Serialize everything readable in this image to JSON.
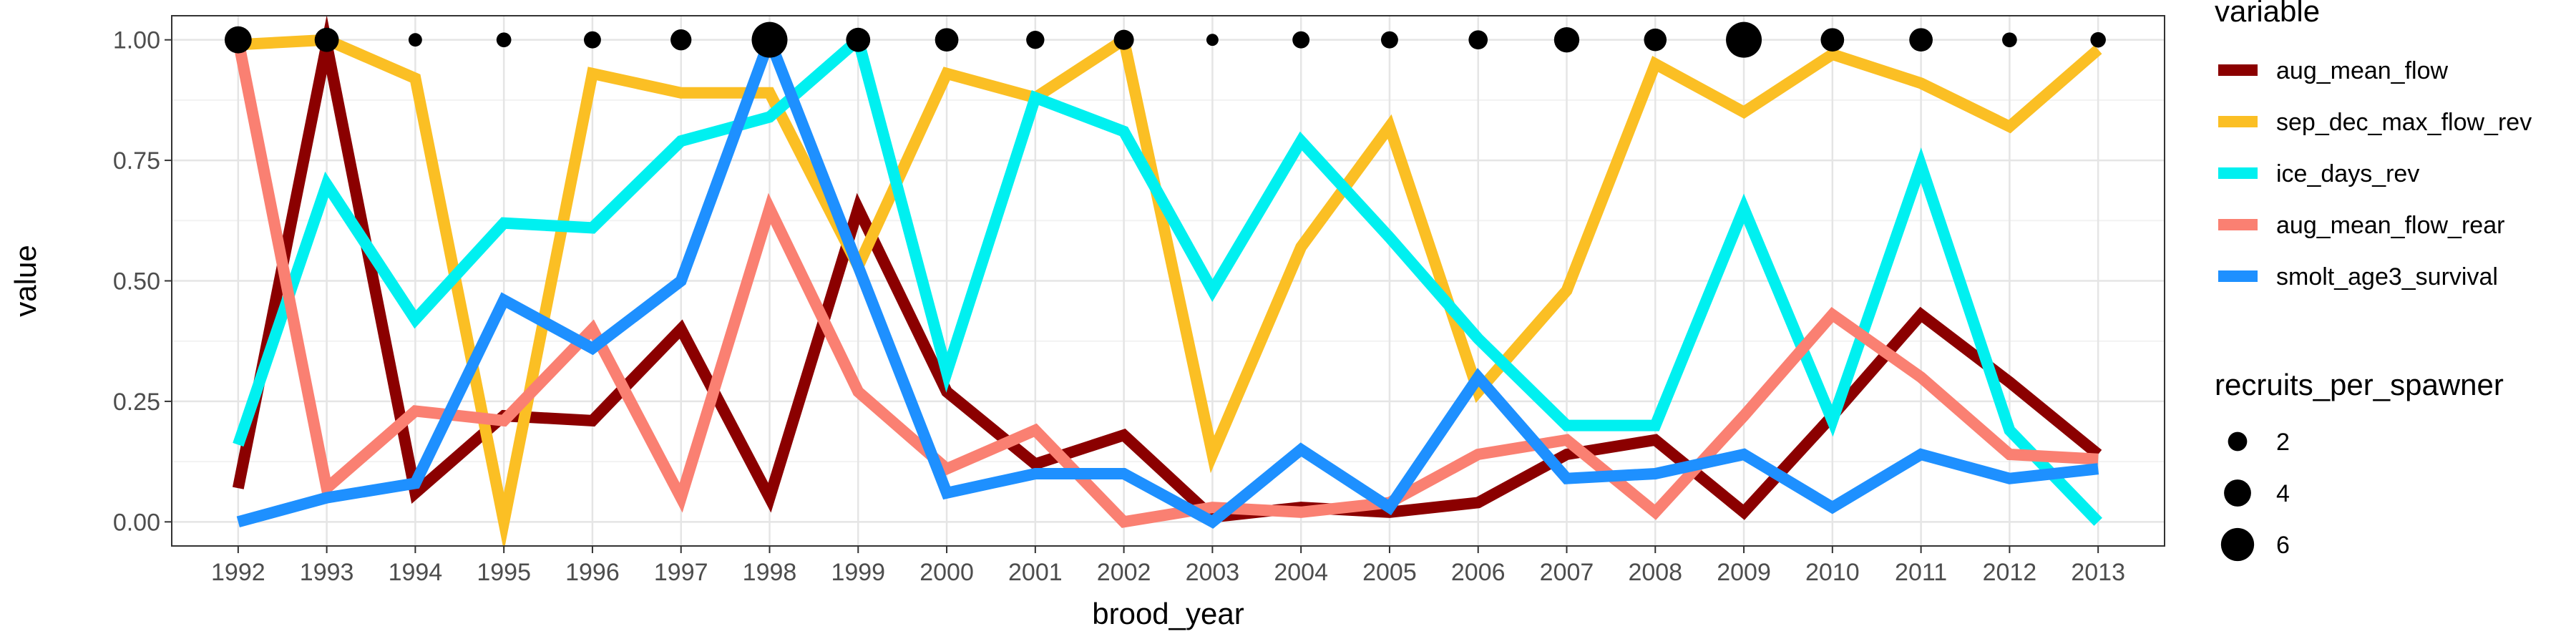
{
  "chart_data": {
    "type": "line",
    "xlabel": "brood_year",
    "ylabel": "value",
    "x": [
      1992,
      1993,
      1994,
      1995,
      1996,
      1997,
      1998,
      1999,
      2000,
      2001,
      2002,
      2003,
      2004,
      2005,
      2006,
      2007,
      2008,
      2009,
      2010,
      2011,
      2012,
      2013
    ],
    "xlim": [
      1991.25,
      2013.75
    ],
    "ylim": [
      -0.05,
      1.05
    ],
    "yticks": [
      0.0,
      0.25,
      0.5,
      0.75,
      1.0
    ],
    "ytick_labels": [
      "0.00",
      "0.25",
      "0.50",
      "0.75",
      "1.00"
    ],
    "grid": true,
    "legend_position": "right",
    "series": [
      {
        "name": "aug_mean_flow",
        "color": "#8b0000",
        "values": [
          0.07,
          0.99,
          0.06,
          0.22,
          0.21,
          0.4,
          0.05,
          0.65,
          0.27,
          0.12,
          0.18,
          0.01,
          0.03,
          0.02,
          0.04,
          0.14,
          0.17,
          0.02,
          0.22,
          0.43,
          0.29,
          0.14
        ]
      },
      {
        "name": "sep_dec_max_flow_rev",
        "color": "#fbbf24",
        "values": [
          0.99,
          1.0,
          0.92,
          0.0,
          0.93,
          0.89,
          0.89,
          0.53,
          0.93,
          0.88,
          1.0,
          0.14,
          0.57,
          0.82,
          0.27,
          0.48,
          0.95,
          0.85,
          0.97,
          0.91,
          0.82,
          0.98
        ]
      },
      {
        "name": "ice_days_rev",
        "color": "#00f0f0",
        "values": [
          0.16,
          0.7,
          0.42,
          0.62,
          0.61,
          0.79,
          0.84,
          1.0,
          0.31,
          0.88,
          0.81,
          0.48,
          0.79,
          0.59,
          0.38,
          0.2,
          0.2,
          0.65,
          0.21,
          0.74,
          0.19,
          0.0
        ]
      },
      {
        "name": "aug_mean_flow_rear",
        "color": "#fa8072",
        "values": [
          1.0,
          0.07,
          0.23,
          0.21,
          0.4,
          0.05,
          0.65,
          0.27,
          0.11,
          0.19,
          0.0,
          0.03,
          0.02,
          0.04,
          0.14,
          0.17,
          0.02,
          0.22,
          0.43,
          0.3,
          0.14,
          0.13
        ]
      },
      {
        "name": "smolt_age3_survival",
        "color": "#1e90ff",
        "values": [
          0.0,
          0.05,
          0.08,
          0.46,
          0.36,
          0.5,
          1.0,
          0.53,
          0.06,
          0.1,
          0.1,
          0.0,
          0.15,
          0.03,
          0.3,
          0.09,
          0.1,
          0.14,
          0.03,
          0.14,
          0.09,
          0.11
        ]
      }
    ],
    "points": {
      "name": "recruits_per_spawner",
      "y": 1.0,
      "sizes": [
        4.0,
        3.2,
        1.0,
        1.2,
        1.6,
        2.4,
        7.0,
        3.2,
        3.0,
        1.8,
        2.2,
        0.8,
        1.6,
        1.6,
        2.0,
        3.5,
        2.8,
        7.0,
        3.0,
        3.0,
        1.2,
        1.3
      ]
    },
    "legends": [
      {
        "title": "variable",
        "kind": "color",
        "entries": [
          "aug_mean_flow",
          "sep_dec_max_flow_rev",
          "ice_days_rev",
          "aug_mean_flow_rear",
          "smolt_age3_survival"
        ]
      },
      {
        "title": "recruits_per_spawner",
        "kind": "size",
        "entries": [
          {
            "label": "2",
            "value": 2
          },
          {
            "label": "4",
            "value": 4
          },
          {
            "label": "6",
            "value": 6
          }
        ]
      }
    ]
  }
}
